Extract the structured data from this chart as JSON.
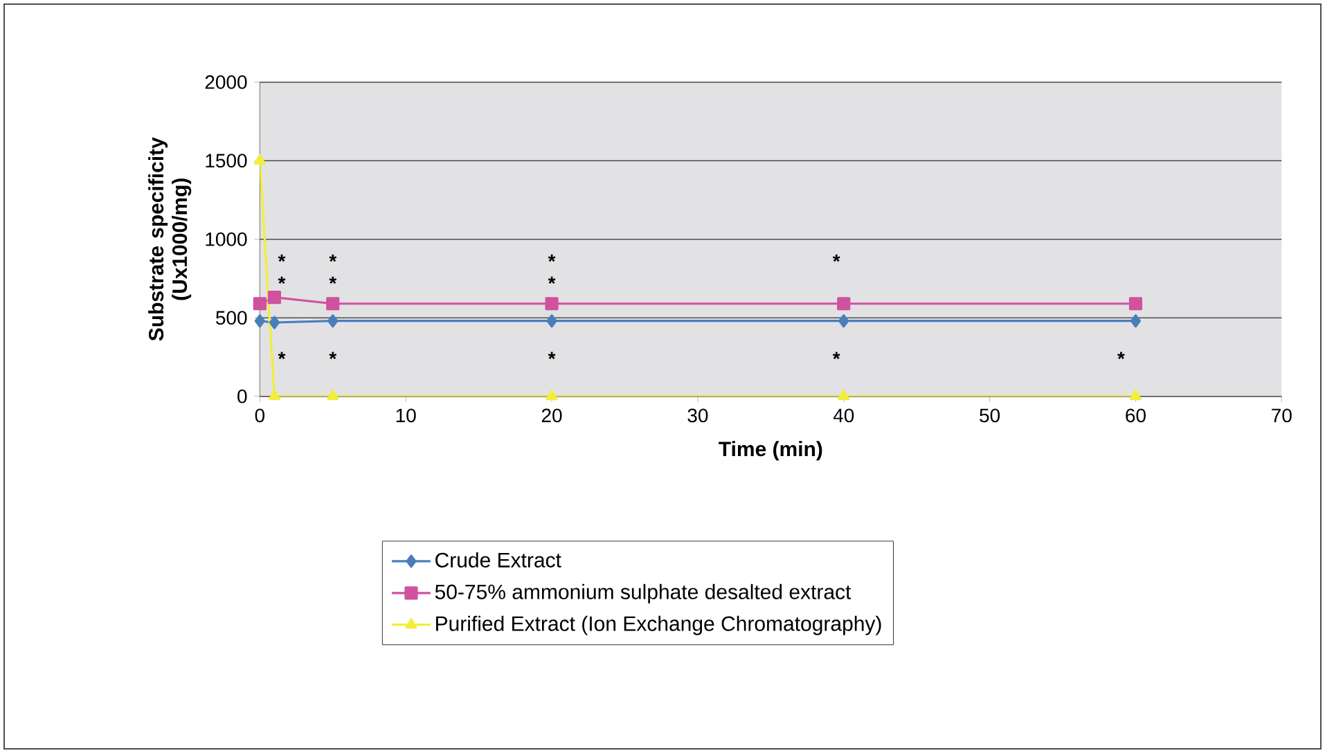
{
  "chart_data": {
    "type": "line",
    "xlabel": "Time (min)",
    "ylabel": "Substrate specificity (Ux1000/mg)",
    "x": [
      0,
      1,
      5,
      20,
      40,
      60
    ],
    "series": [
      {
        "name": "Crude Extract",
        "color": "#4a7ebb",
        "marker": "diamond",
        "values": [
          480,
          470,
          480,
          480,
          480,
          480
        ]
      },
      {
        "name": "50-75% ammonium sulphate desalted extract",
        "color": "#d0529f",
        "marker": "square",
        "values": [
          590,
          630,
          590,
          590,
          590,
          590
        ]
      },
      {
        "name": "Purified Extract (Ion Exchange Chromatography)",
        "color": "#f2ee3a",
        "marker": "triangle",
        "values": [
          1500,
          0,
          0,
          0,
          0,
          0
        ]
      }
    ],
    "xlim": [
      0,
      70
    ],
    "xticks": [
      0,
      10,
      20,
      30,
      40,
      50,
      60,
      70
    ],
    "ylim": [
      0,
      2000
    ],
    "yticks": [
      0,
      500,
      1000,
      1500,
      2000
    ],
    "grid": "y",
    "legend": "bottom",
    "annotations": [
      "*",
      "*",
      "*",
      "*",
      "*",
      "*",
      "*",
      "*",
      "*",
      "*",
      "*",
      "*"
    ]
  }
}
